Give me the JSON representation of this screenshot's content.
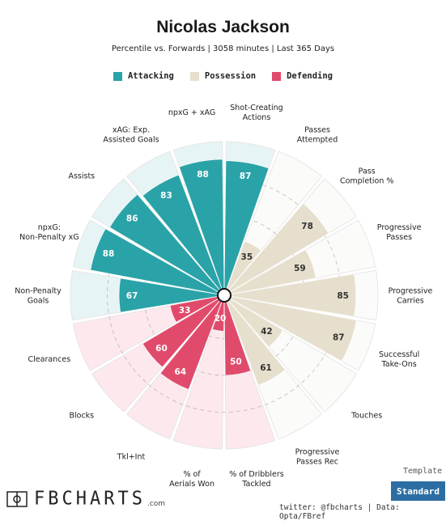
{
  "header": {
    "title": "Nicolas Jackson",
    "subtitle": "Percentile vs. Forwards | 3058 minutes | Last 365 Days"
  },
  "legend": [
    {
      "label": "Attacking",
      "color": "#2aa3a8"
    },
    {
      "label": "Possession",
      "color": "#e6dfcd"
    },
    {
      "label": "Defending",
      "color": "#e04b6c"
    }
  ],
  "chart_data": {
    "type": "radar-bar",
    "max": 100,
    "categories": [
      {
        "label": "Shot-Creating Actions",
        "value": 87,
        "group": "Attacking"
      },
      {
        "label": "Passes Attempted",
        "value": 35,
        "group": "Possession"
      },
      {
        "label": "Pass Completion %",
        "value": 78,
        "group": "Possession"
      },
      {
        "label": "Progressive Passes",
        "value": 59,
        "group": "Possession"
      },
      {
        "label": "Progressive Carries",
        "value": 85,
        "group": "Possession"
      },
      {
        "label": "Successful Take-Ons",
        "value": 87,
        "group": "Possession"
      },
      {
        "label": "Touches",
        "value": 42,
        "group": "Possession"
      },
      {
        "label": "Progressive Passes Rec",
        "value": 61,
        "group": "Possession"
      },
      {
        "label": "% of Dribblers Tackled",
        "value": 50,
        "group": "Defending"
      },
      {
        "label": "% of Aerials Won",
        "value": 20,
        "group": "Defending"
      },
      {
        "label": "Tkl+Int",
        "value": 64,
        "group": "Defending"
      },
      {
        "label": "Blocks",
        "value": 60,
        "group": "Defending"
      },
      {
        "label": "Clearances",
        "value": 33,
        "group": "Defending"
      },
      {
        "label": "Non-Penalty Goals",
        "value": 67,
        "group": "Attacking"
      },
      {
        "label": "npxG: Non-Penalty xG",
        "value": 88,
        "group": "Attacking"
      },
      {
        "label": "Assists",
        "value": 86,
        "group": "Attacking"
      },
      {
        "label": "xAG: Exp. Assisted Goals",
        "value": 83,
        "group": "Attacking"
      },
      {
        "label": "npxG + xAG",
        "value": 88,
        "group": "Attacking"
      }
    ],
    "group_colors": {
      "Attacking": {
        "bar": "#2aa3a8",
        "bg": "#e7f4f5",
        "text": "#ffffff"
      },
      "Possession": {
        "bar": "#e6dfcd",
        "bg": "#fbfbf9",
        "text": "#333333"
      },
      "Defending": {
        "bar": "#e04b6c",
        "bg": "#fce8ed",
        "text": "#ffffff"
      }
    }
  },
  "template": {
    "label": "Template",
    "value": "Standard"
  },
  "branding": {
    "logo_text": "FBCHARTS",
    "logo_suffix": ".com",
    "credit": "twitter: @fbcharts | Data: Opta/FBref"
  }
}
